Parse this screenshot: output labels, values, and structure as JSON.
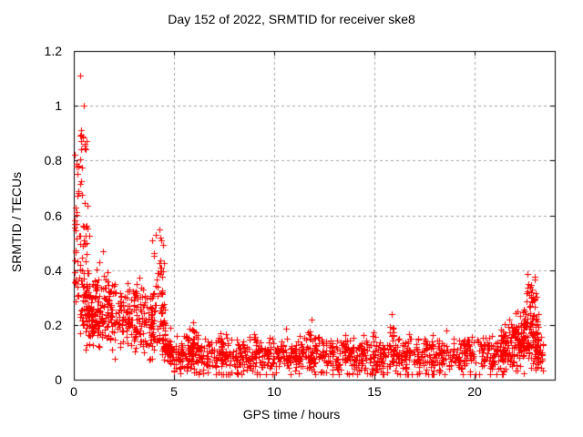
{
  "chart_data": {
    "type": "scatter",
    "title": "Day 152 of 2022, SRMTID for receiver ske8",
    "xlabel": "GPS time / hours",
    "ylabel": "SRMTID / TECUs",
    "xlim": [
      0,
      24
    ],
    "ylim": [
      0,
      1.2
    ],
    "xticks": {
      "values": [
        0,
        5,
        10,
        15,
        20
      ],
      "labels": [
        "0",
        "5",
        "10",
        "15",
        "20"
      ]
    },
    "yticks": {
      "values": [
        0,
        0.2,
        0.4,
        0.6,
        0.8,
        1,
        1.2
      ],
      "labels": [
        "0",
        "0.2",
        "0.4",
        "0.6",
        "0.8",
        "1",
        "1.2"
      ]
    },
    "grid": {
      "visible": true,
      "style": "dashed",
      "color": "#a6a6a6"
    },
    "axis_color": "#000000",
    "background": "#ffffff",
    "legend": "none",
    "marker": {
      "shape": "plus",
      "color": "#ff0000",
      "size": 7
    },
    "cluster_format": [
      "x_start_hours",
      "x_end_hours",
      "point_count",
      "y_center_at_start",
      "y_center_at_end",
      "y_std_dev"
    ],
    "point_clusters": [
      [
        0.02,
        0.12,
        10,
        0.45,
        0.45,
        0.1
      ],
      [
        0.02,
        0.15,
        8,
        0.62,
        0.6,
        0.05
      ],
      [
        0.25,
        0.65,
        9,
        0.87,
        0.85,
        0.03
      ],
      [
        0.05,
        0.45,
        7,
        0.79,
        0.78,
        0.02
      ],
      [
        0.15,
        0.55,
        6,
        0.72,
        0.7,
        0.03
      ],
      [
        0.1,
        0.7,
        10,
        0.62,
        0.58,
        0.04
      ],
      [
        0.1,
        0.8,
        12,
        0.52,
        0.48,
        0.04
      ],
      [
        0.15,
        1.0,
        30,
        0.33,
        0.3,
        0.06
      ],
      [
        0.3,
        1.2,
        50,
        0.24,
        0.23,
        0.05
      ],
      [
        0.5,
        2.5,
        160,
        0.24,
        0.22,
        0.055
      ],
      [
        1.0,
        2.2,
        25,
        0.35,
        0.33,
        0.04
      ],
      [
        2.5,
        4.0,
        120,
        0.22,
        0.2,
        0.055
      ],
      [
        2.8,
        3.6,
        15,
        0.32,
        0.3,
        0.03
      ],
      [
        3.8,
        4.55,
        60,
        0.25,
        0.22,
        0.07
      ],
      [
        3.9,
        4.5,
        18,
        0.42,
        0.4,
        0.06
      ],
      [
        4.4,
        5.0,
        60,
        0.14,
        0.09,
        0.035
      ],
      [
        5.0,
        21.3,
        1050,
        0.085,
        0.085,
        0.035
      ],
      [
        5.7,
        6.2,
        14,
        0.16,
        0.15,
        0.03
      ],
      [
        7.2,
        7.6,
        10,
        0.14,
        0.14,
        0.02
      ],
      [
        9.0,
        9.4,
        8,
        0.13,
        0.13,
        0.02
      ],
      [
        11.3,
        12.1,
        16,
        0.16,
        0.15,
        0.03
      ],
      [
        13.4,
        13.8,
        8,
        0.13,
        0.13,
        0.02
      ],
      [
        15.7,
        16.1,
        12,
        0.16,
        0.15,
        0.035
      ],
      [
        17.4,
        17.9,
        10,
        0.13,
        0.13,
        0.025
      ],
      [
        19.3,
        19.8,
        10,
        0.12,
        0.12,
        0.02
      ],
      [
        21.3,
        22.4,
        130,
        0.11,
        0.15,
        0.045
      ],
      [
        22.4,
        23.2,
        110,
        0.15,
        0.2,
        0.06
      ],
      [
        22.5,
        23.0,
        12,
        0.31,
        0.3,
        0.03
      ],
      [
        23.0,
        23.4,
        40,
        0.1,
        0.08,
        0.03
      ]
    ],
    "outlier_points": [
      [
        0.33,
        1.11
      ],
      [
        0.5,
        1.0
      ],
      [
        0.38,
        0.91
      ],
      [
        0.3,
        0.89
      ],
      [
        0.55,
        0.86
      ],
      [
        1.45,
        0.47
      ],
      [
        4.25,
        0.55
      ],
      [
        4.1,
        0.53
      ],
      [
        4.35,
        0.51
      ],
      [
        5.95,
        0.21
      ],
      [
        11.85,
        0.22
      ],
      [
        15.85,
        0.24
      ],
      [
        22.62,
        0.385
      ],
      [
        22.99,
        0.375
      ],
      [
        22.76,
        0.34
      ],
      [
        22.85,
        0.33
      ]
    ]
  }
}
